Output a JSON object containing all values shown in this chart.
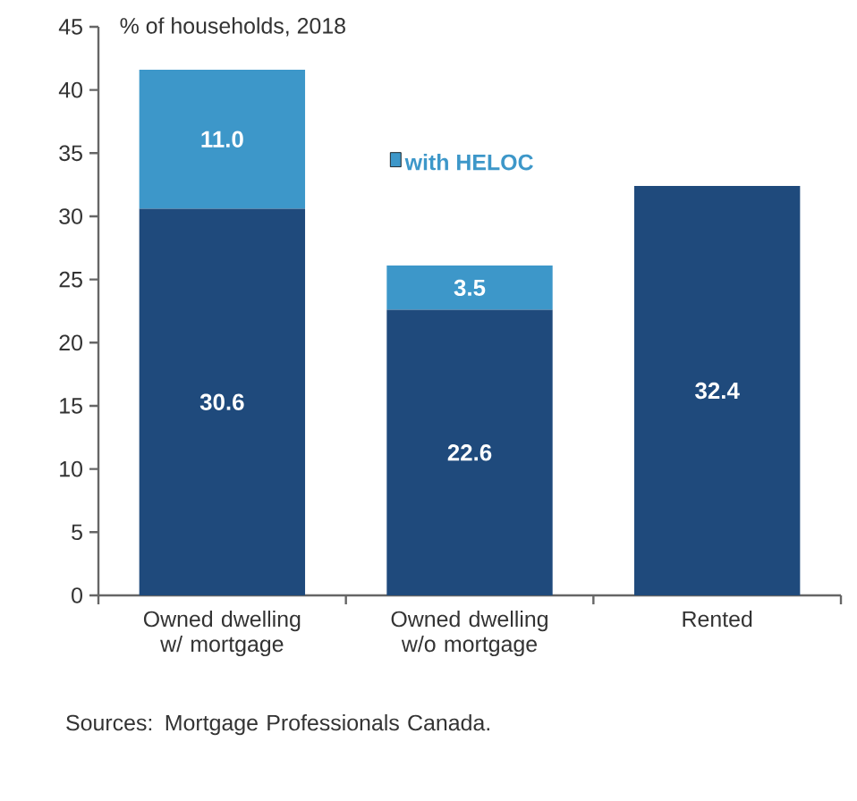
{
  "chart_data": {
    "type": "bar",
    "stacked": true,
    "ylabel": "% of households, 2018",
    "categories": [
      "Owned dwelling w/ mortgage",
      "Owned dwelling w/o mortgage",
      "Rented"
    ],
    "series": [
      {
        "color": "#1f4a7c",
        "values": [
          30.6,
          22.6,
          32.4
        ],
        "value_labels": [
          "30.6",
          "22.6",
          "32.4"
        ]
      },
      {
        "name": "with HELOC",
        "color": "#3d97c9",
        "values": [
          11.0,
          3.5,
          null
        ],
        "value_labels": [
          "11.0",
          "3.5",
          null
        ]
      }
    ],
    "ylim": [
      0,
      45
    ],
    "yticks": [
      0,
      5,
      10,
      15,
      20,
      25,
      30,
      35,
      40,
      45
    ],
    "legend": "top",
    "grid": false,
    "annotations": [
      "Sources: Mortgage Professionals Canada."
    ]
  }
}
